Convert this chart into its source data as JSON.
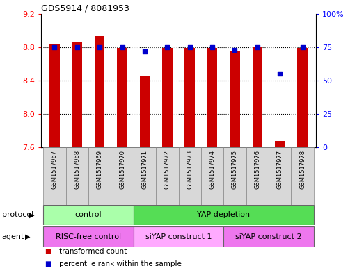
{
  "title": "GDS5914 / 8081953",
  "categories": [
    "GSM1517967",
    "GSM1517968",
    "GSM1517969",
    "GSM1517970",
    "GSM1517971",
    "GSM1517972",
    "GSM1517973",
    "GSM1517974",
    "GSM1517975",
    "GSM1517976",
    "GSM1517977",
    "GSM1517978"
  ],
  "bar_values": [
    8.84,
    8.86,
    8.93,
    8.79,
    8.45,
    8.79,
    8.79,
    8.79,
    8.75,
    8.81,
    7.68,
    8.79
  ],
  "percentile_values": [
    75,
    75,
    75,
    75,
    72,
    75,
    75,
    75,
    73,
    75,
    55,
    75
  ],
  "ylim_left": [
    7.6,
    9.2
  ],
  "ylim_right": [
    0,
    100
  ],
  "bar_color": "#cc0000",
  "dot_color": "#0000cc",
  "yticks_left": [
    7.6,
    8.0,
    8.4,
    8.8,
    9.2
  ],
  "yticks_right": [
    0,
    25,
    50,
    75,
    100
  ],
  "ytick_labels_right": [
    "0",
    "25",
    "50",
    "75",
    "100%"
  ],
  "hgrid_values": [
    8.0,
    8.4,
    8.8
  ],
  "protocol_groups": [
    {
      "label": "control",
      "start": 0,
      "end": 3,
      "color": "#aaffaa"
    },
    {
      "label": "YAP depletion",
      "start": 4,
      "end": 11,
      "color": "#55dd55"
    }
  ],
  "agent_groups": [
    {
      "label": "RISC-free control",
      "start": 0,
      "end": 3,
      "color": "#ee77ee"
    },
    {
      "label": "siYAP construct 1",
      "start": 4,
      "end": 7,
      "color": "#ffaaff"
    },
    {
      "label": "siYAP construct 2",
      "start": 8,
      "end": 11,
      "color": "#ee77ee"
    }
  ],
  "legend_items": [
    {
      "label": "transformed count",
      "color": "#cc0000"
    },
    {
      "label": "percentile rank within the sample",
      "color": "#0000cc"
    }
  ],
  "protocol_label": "protocol",
  "agent_label": "agent",
  "bar_width": 0.45
}
